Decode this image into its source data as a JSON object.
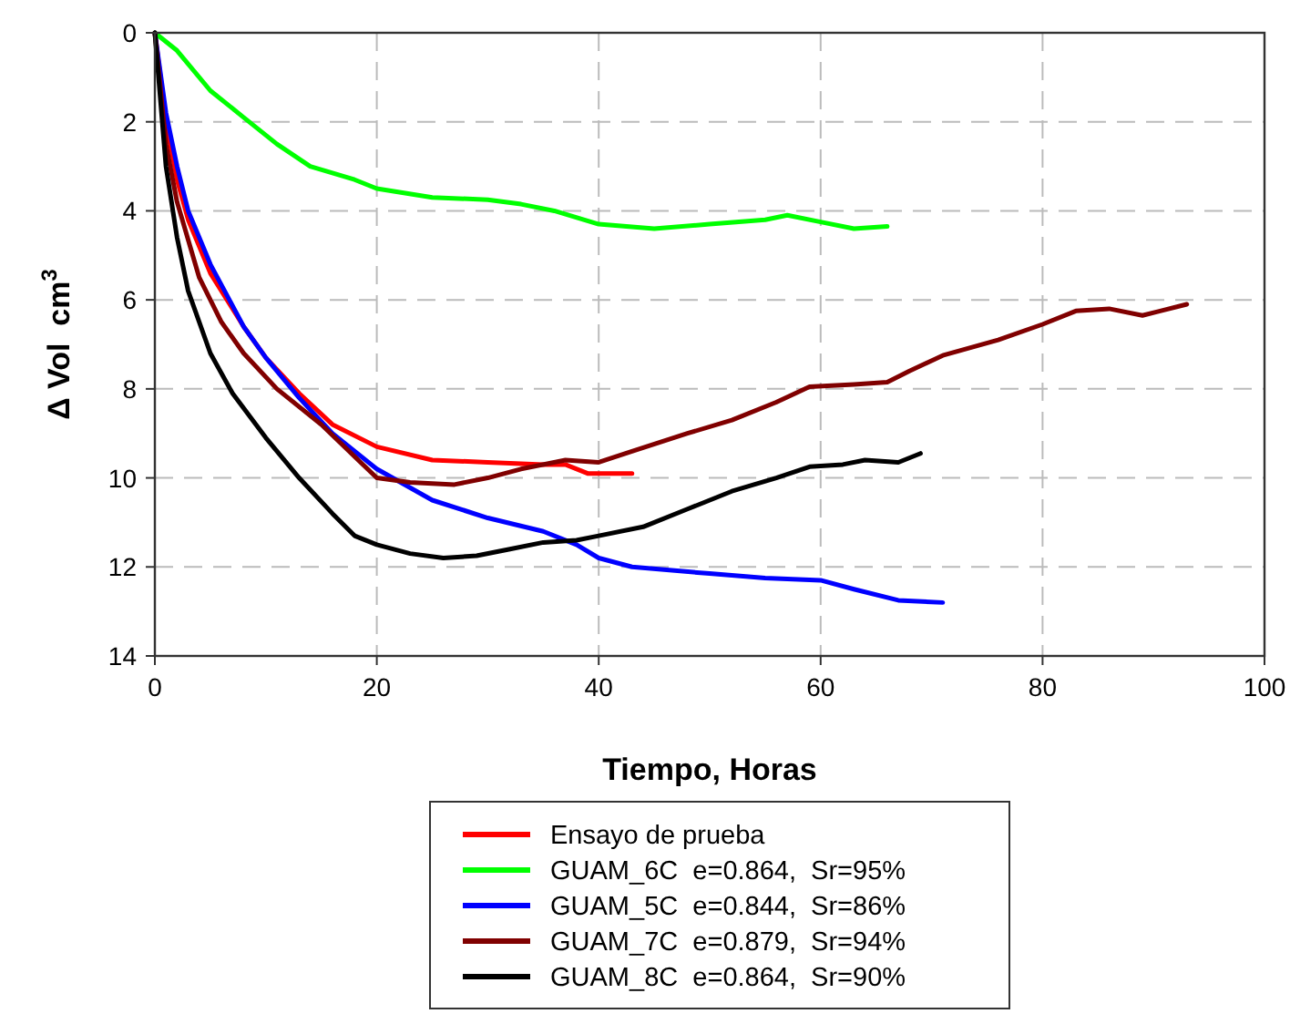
{
  "chart_data": {
    "type": "line",
    "xlabel": "Tiempo, Horas",
    "ylabel": "Δ Vol  cm$^{3}$",
    "xlim": [
      0,
      100
    ],
    "xticks": [
      0,
      20,
      40,
      60,
      80,
      100
    ],
    "ylim": [
      14,
      0
    ],
    "yticks": [
      0,
      2,
      4,
      6,
      8,
      10,
      12,
      14
    ],
    "grid": true,
    "legend": "bottom",
    "marker": "none",
    "line_style": "solid",
    "series": [
      {
        "name": "Ensayo de prueba",
        "color": "#ff0000",
        "x": [
          0,
          1,
          2,
          3,
          5,
          8,
          10,
          13,
          16,
          20,
          25,
          30,
          35,
          37,
          39,
          43
        ],
        "values": [
          0,
          2,
          3.3,
          4.2,
          5.4,
          6.6,
          7.3,
          8.1,
          8.8,
          9.3,
          9.6,
          9.65,
          9.7,
          9.7,
          9.9,
          9.9
        ]
      },
      {
        "name": "GUAM_6C  e=0.864,  Sr=95%",
        "color": "#00ff00",
        "x": [
          0,
          2,
          5,
          8,
          11,
          14,
          18,
          20,
          25,
          30,
          33,
          36,
          40,
          45,
          50,
          55,
          57,
          60,
          63,
          66
        ],
        "values": [
          0,
          0.4,
          1.3,
          1.9,
          2.5,
          3,
          3.3,
          3.5,
          3.7,
          3.75,
          3.85,
          4,
          4.3,
          4.4,
          4.3,
          4.2,
          4.1,
          4.25,
          4.4,
          4.35
        ]
      },
      {
        "name": "GUAM_5C  e=0.844,  Sr=86%",
        "color": "#0000ff",
        "x": [
          0,
          1,
          2,
          3,
          5,
          8,
          10,
          13,
          16,
          20,
          25,
          30,
          35,
          38,
          40,
          43,
          50,
          55,
          60,
          63,
          67,
          71
        ],
        "values": [
          0,
          1.8,
          3,
          4,
          5.2,
          6.6,
          7.3,
          8.2,
          9,
          9.8,
          10.5,
          10.9,
          11.2,
          11.5,
          11.8,
          12,
          12.15,
          12.25,
          12.3,
          12.5,
          12.75,
          12.8
        ]
      },
      {
        "name": "GUAM_7C  e=0.879,  Sr=94%",
        "color": "#800000",
        "x": [
          0,
          1,
          2,
          4,
          6,
          8,
          11,
          15,
          20,
          23,
          27,
          30,
          33,
          37,
          40,
          43,
          48,
          52,
          56,
          59,
          63,
          66,
          68,
          71,
          76,
          80,
          83,
          86,
          89,
          93
        ],
        "values": [
          0,
          2.5,
          3.8,
          5.5,
          6.5,
          7.2,
          8,
          8.8,
          10,
          10.1,
          10.15,
          10,
          9.8,
          9.6,
          9.65,
          9.4,
          9,
          8.7,
          8.3,
          7.95,
          7.9,
          7.85,
          7.6,
          7.25,
          6.9,
          6.55,
          6.25,
          6.2,
          6.35,
          6.1
        ]
      },
      {
        "name": "GUAM_8C  e=0.864,  Sr=90%",
        "color": "#000000",
        "x": [
          0,
          1,
          2,
          3,
          5,
          7,
          10,
          13,
          16,
          18,
          20,
          23,
          26,
          29,
          32,
          35,
          38,
          40,
          44,
          48,
          52,
          56,
          59,
          62,
          64,
          67,
          69
        ],
        "values": [
          0,
          3,
          4.6,
          5.8,
          7.2,
          8.1,
          9.1,
          10,
          10.8,
          11.3,
          11.5,
          11.7,
          11.8,
          11.75,
          11.6,
          11.45,
          11.4,
          11.3,
          11.1,
          10.7,
          10.3,
          10,
          9.75,
          9.7,
          9.6,
          9.65,
          9.45
        ]
      }
    ]
  }
}
